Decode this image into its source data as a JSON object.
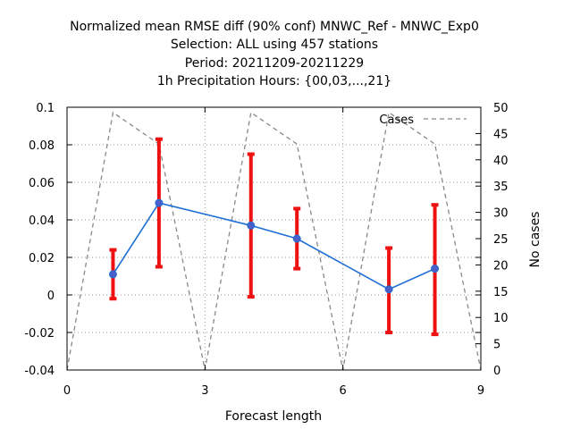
{
  "chart_data": {
    "type": "line",
    "title_lines": [
      "Normalized mean RMSE diff (90% conf) MNWC_Ref - MNWC_Exp0",
      "Selection: ALL using   457 stations",
      "Period: 20211209-20211229",
      "1h Precipitation    Hours: {00,03,...,21}"
    ],
    "xlabel": "Forecast length",
    "ylabel": "",
    "y2label": "No cases",
    "xlim": [
      0,
      9
    ],
    "ylim": [
      -0.04,
      0.1
    ],
    "y2lim": [
      0,
      50
    ],
    "x_ticks": [
      0,
      3,
      6,
      9
    ],
    "y_ticks": [
      "0.1",
      "0.08",
      "0.06",
      "0.04",
      "0.02",
      "0",
      "-0.02",
      "-0.04"
    ],
    "y_tick_values": [
      0.1,
      0.08,
      0.06,
      0.04,
      0.02,
      0,
      -0.02,
      -0.04
    ],
    "y2_ticks": [
      0,
      5,
      10,
      15,
      20,
      25,
      30,
      35,
      40,
      45,
      50
    ],
    "grid": true,
    "series": [
      {
        "kind": "mean_with_ci",
        "color": "#1f6fd6",
        "errorbar_color": "#ee1111",
        "x": [
          1,
          2,
          4,
          5,
          7,
          8
        ],
        "y": [
          0.011,
          0.049,
          0.037,
          0.03,
          0.003,
          0.014
        ],
        "lower": [
          -0.002,
          0.015,
          -0.001,
          0.014,
          -0.02,
          -0.021
        ],
        "upper": [
          0.024,
          0.083,
          0.075,
          0.046,
          0.025,
          0.048
        ]
      },
      {
        "name": "Cases",
        "kind": "cases",
        "axis": "right",
        "color": "#888888",
        "dash": true,
        "x": [
          0,
          1,
          2,
          3,
          4,
          5,
          6,
          7,
          8,
          9
        ],
        "y": [
          0,
          49,
          43,
          0,
          49,
          43,
          0,
          49,
          43,
          0
        ]
      }
    ],
    "legend_position": "top-right"
  }
}
